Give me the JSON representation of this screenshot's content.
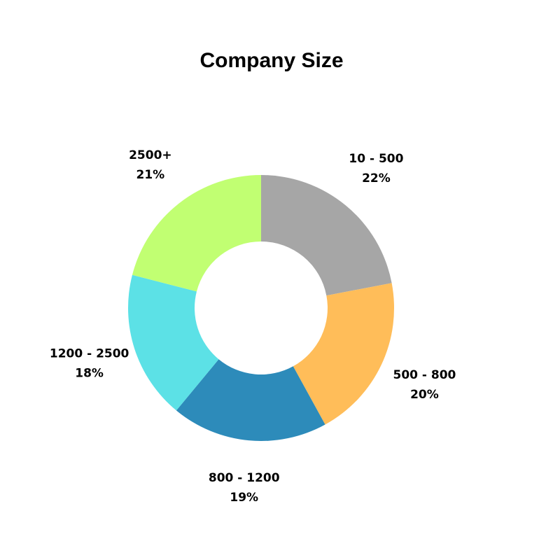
{
  "chart_data": {
    "type": "donut",
    "title": "Company Size",
    "categories": [
      "10 - 500",
      "500 - 800",
      "800 - 1200",
      "1200 - 2500",
      "2500+"
    ],
    "values": [
      22,
      20,
      19,
      18,
      21
    ],
    "value_labels": [
      "22%",
      "20%",
      "19%",
      "18%",
      "21%"
    ],
    "colors": [
      "#a6a6a6",
      "#ffbd59",
      "#2d8bba",
      "#5ce1e6",
      "#c1ff72"
    ]
  }
}
